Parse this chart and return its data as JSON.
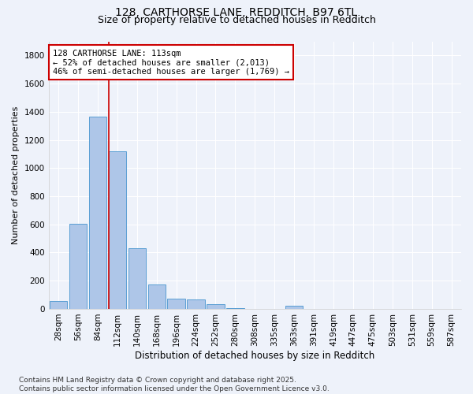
{
  "title1": "128, CARTHORSE LANE, REDDITCH, B97 6TL",
  "title2": "Size of property relative to detached houses in Redditch",
  "xlabel": "Distribution of detached houses by size in Redditch",
  "ylabel": "Number of detached properties",
  "categories": [
    "28sqm",
    "56sqm",
    "84sqm",
    "112sqm",
    "140sqm",
    "168sqm",
    "196sqm",
    "224sqm",
    "252sqm",
    "280sqm",
    "308sqm",
    "335sqm",
    "363sqm",
    "391sqm",
    "419sqm",
    "447sqm",
    "475sqm",
    "503sqm",
    "531sqm",
    "559sqm",
    "587sqm"
  ],
  "values": [
    55,
    605,
    1365,
    1120,
    430,
    175,
    70,
    65,
    35,
    5,
    0,
    0,
    20,
    0,
    0,
    0,
    0,
    0,
    0,
    0,
    0
  ],
  "bar_color": "#aec6e8",
  "bar_edge_color": "#5a9fd4",
  "vline_color": "#cc0000",
  "annotation_text": "128 CARTHORSE LANE: 113sqm\n← 52% of detached houses are smaller (2,013)\n46% of semi-detached houses are larger (1,769) →",
  "annotation_box_color": "#ffffff",
  "annotation_box_edge_color": "#cc0000",
  "yticks": [
    0,
    200,
    400,
    600,
    800,
    1000,
    1200,
    1400,
    1600,
    1800
  ],
  "ylim": [
    0,
    1900
  ],
  "bg_color": "#eef2fa",
  "grid_color": "#ffffff",
  "footer": "Contains HM Land Registry data © Crown copyright and database right 2025.\nContains public sector information licensed under the Open Government Licence v3.0.",
  "title1_fontsize": 10,
  "title2_fontsize": 9,
  "xlabel_fontsize": 8.5,
  "ylabel_fontsize": 8,
  "tick_fontsize": 7.5,
  "annotation_fontsize": 7.5,
  "footer_fontsize": 6.5
}
